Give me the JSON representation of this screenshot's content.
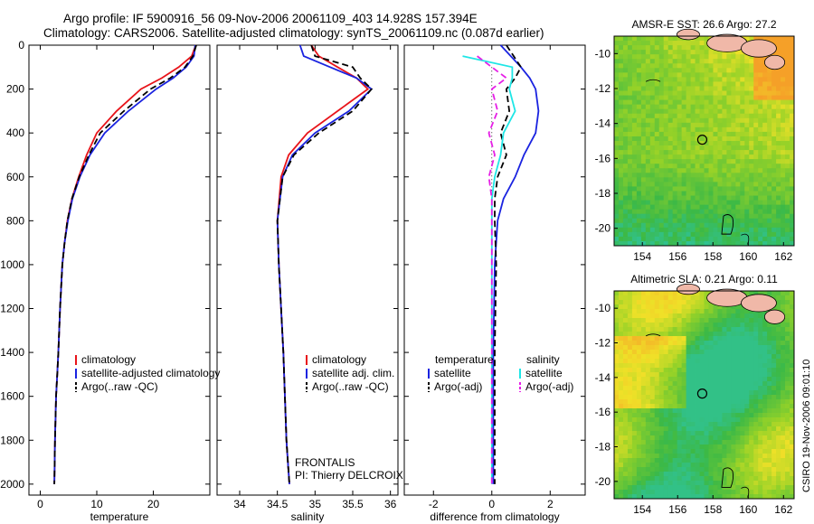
{
  "header": {
    "line1": "Argo profile: IF 5900916_56 09-Nov-2006 20061109_403 14.928S 157.394E",
    "line2": "Climatology: CARS2006. Satellite-adjusted climatology: synTS_20061109.nc (0.087d earlier)"
  },
  "side_label": "CSIRO 19-Nov-2006 09:01:10",
  "colors": {
    "climatology": "#e8141a",
    "satellite": "#1a23e0",
    "argo": "#000000",
    "salinity_satellite": "#1ee6e6",
    "salinity_argo": "#e61ee6"
  },
  "chart_data": [
    {
      "type": "line",
      "title": "",
      "xlabel": "temperature",
      "ylabel": "",
      "xlim": [
        -2,
        30
      ],
      "ylim": [
        2050,
        0
      ],
      "xticks": [
        0,
        10,
        20
      ],
      "yticks": [
        0,
        200,
        400,
        600,
        800,
        1000,
        1200,
        1400,
        1600,
        1800,
        2000
      ],
      "legend": {
        "position": "middle-right",
        "entries": [
          "climatology",
          "satellite-adjusted climatology",
          "Argo(..raw -QC)"
        ]
      },
      "series": [
        {
          "name": "climatology",
          "color": "#e8141a",
          "dash": "solid",
          "x": [
            27.5,
            26.8,
            24.5,
            21.5,
            17.8,
            13.5,
            10.0,
            8.2,
            6.8,
            5.6,
            4.8,
            4.3,
            3.9,
            3.5,
            3.2,
            3.0,
            2.8,
            2.6,
            2.5
          ],
          "y": [
            0,
            50,
            100,
            150,
            200,
            300,
            400,
            500,
            600,
            700,
            800,
            900,
            1000,
            1200,
            1400,
            1500,
            1600,
            1800,
            2000
          ]
        },
        {
          "name": "satellite-adjusted climatology",
          "color": "#1a23e0",
          "dash": "solid",
          "x": [
            27.4,
            27.2,
            25.8,
            23.5,
            20.5,
            15.6,
            11.4,
            8.8,
            7.0,
            5.7,
            4.9,
            4.3,
            3.9,
            3.5,
            3.2,
            3.0,
            2.8,
            2.6,
            2.5
          ],
          "y": [
            0,
            50,
            100,
            150,
            200,
            300,
            400,
            500,
            600,
            700,
            800,
            900,
            1000,
            1200,
            1400,
            1500,
            1600,
            1800,
            2000
          ]
        },
        {
          "name": "Argo(..raw -QC)",
          "color": "#000000",
          "dash": "dashed",
          "x": [
            27.6,
            27.0,
            25.6,
            23.0,
            19.5,
            14.8,
            10.6,
            8.6,
            6.9,
            5.6,
            4.8,
            4.3,
            3.9,
            3.5,
            3.2,
            3.0,
            2.8,
            2.6,
            2.5
          ],
          "y": [
            0,
            50,
            100,
            150,
            200,
            300,
            400,
            500,
            600,
            700,
            800,
            900,
            1000,
            1200,
            1400,
            1500,
            1600,
            1800,
            2000
          ]
        }
      ]
    },
    {
      "type": "line",
      "title": "",
      "xlabel": "salinity",
      "ylabel": "",
      "xlim": [
        33.7,
        36.1
      ],
      "ylim": [
        2050,
        0
      ],
      "xticks": [
        34,
        34.5,
        35,
        35.5,
        36
      ],
      "yticks": [],
      "legend": {
        "position": "bottom-right",
        "entries": [
          "climatology",
          "satellite adj. clim.",
          "Argo(..raw -QC)"
        ]
      },
      "annotations": [
        "FRONTALIS",
        "PI: Thierry DELCROIX"
      ],
      "series": [
        {
          "name": "climatology",
          "color": "#e8141a",
          "dash": "solid",
          "x": [
            34.95,
            35.05,
            35.3,
            35.55,
            35.7,
            35.3,
            34.9,
            34.65,
            34.55,
            34.5,
            34.52,
            34.55,
            34.58,
            34.6,
            34.62,
            34.64,
            34.66
          ],
          "y": [
            0,
            50,
            100,
            150,
            200,
            300,
            400,
            500,
            600,
            800,
            1000,
            1200,
            1400,
            1600,
            1800,
            1900,
            2000
          ]
        },
        {
          "name": "satellite adj. clim.",
          "color": "#1a23e0",
          "dash": "solid",
          "x": [
            34.8,
            34.85,
            35.2,
            35.55,
            35.75,
            35.45,
            35.0,
            34.7,
            34.57,
            34.5,
            34.52,
            34.55,
            34.58,
            34.6,
            34.62,
            34.64,
            34.66
          ],
          "y": [
            0,
            50,
            100,
            150,
            200,
            300,
            400,
            500,
            600,
            800,
            1000,
            1200,
            1400,
            1600,
            1800,
            1900,
            2000
          ]
        },
        {
          "name": "Argo(..raw -QC)",
          "color": "#000000",
          "dash": "dashed",
          "x": [
            34.95,
            35.0,
            35.5,
            35.6,
            35.75,
            35.5,
            35.05,
            34.72,
            34.57,
            34.5,
            34.52,
            34.55,
            34.58,
            34.6,
            34.62,
            34.64,
            34.66
          ],
          "y": [
            0,
            50,
            100,
            150,
            200,
            300,
            400,
            500,
            600,
            800,
            1000,
            1200,
            1400,
            1600,
            1800,
            1900,
            2000
          ]
        }
      ]
    },
    {
      "type": "line",
      "title": "",
      "xlabel": "difference from climatology",
      "ylabel": "",
      "xlim": [
        -3,
        3.2
      ],
      "ylim": [
        2050,
        0
      ],
      "xticks": [
        -2,
        0,
        2
      ],
      "yticks": [],
      "legend": {
        "position": "bottom-middle",
        "groups": [
          {
            "title": "temperature",
            "entries": [
              "satellite",
              "Argo(-adj)"
            ]
          },
          {
            "title": "salinity",
            "entries": [
              "satellite",
              "Argo(-adj)"
            ]
          }
        ]
      },
      "series": [
        {
          "name": "temperature satellite",
          "color": "#1a23e0",
          "dash": "solid",
          "x": [
            0.3,
            1.0,
            1.3,
            1.5,
            1.6,
            1.5,
            1.1,
            0.8,
            0.4,
            0.2,
            0.1,
            0.05,
            0.05,
            0.05
          ],
          "y": [
            0,
            100,
            150,
            200,
            300,
            400,
            500,
            600,
            700,
            800,
            1000,
            1400,
            1800,
            2000
          ]
        },
        {
          "name": "temperature Argo(-adj)",
          "color": "#000000",
          "dash": "dashed",
          "x": [
            0.5,
            1.0,
            0.8,
            0.5,
            0.6,
            0.3,
            0.5,
            0.2,
            0.1,
            0.1,
            0.15,
            0.1,
            0.1
          ],
          "y": [
            0,
            100,
            150,
            200,
            300,
            400,
            500,
            600,
            700,
            800,
            1000,
            1400,
            2000
          ]
        },
        {
          "name": "salinity satellite",
          "color": "#1ee6e6",
          "dash": "solid",
          "x": [
            -1.0,
            0.7,
            0.7,
            0.6,
            0.8,
            0.4,
            0.3,
            0.1,
            0.0,
            0.0,
            0.0,
            0.0
          ],
          "y": [
            50,
            100,
            150,
            200,
            300,
            400,
            500,
            600,
            700,
            1000,
            1500,
            2000
          ]
        },
        {
          "name": "salinity Argo(-adj)",
          "color": "#e61ee6",
          "dash": "dashed",
          "x": [
            -0.5,
            0.0,
            0.5,
            0.0,
            0.2,
            -0.1,
            0.1,
            -0.1,
            0.0,
            0.0,
            0.0,
            0.0
          ],
          "y": [
            50,
            100,
            150,
            200,
            300,
            400,
            500,
            600,
            700,
            1000,
            1500,
            2000
          ]
        }
      ]
    },
    {
      "type": "heatmap",
      "title": "AMSR-E SST: 26.6 Argo: 27.2",
      "xticks": [
        154,
        156,
        158,
        160,
        162
      ],
      "yticks": [
        -10,
        -12,
        -14,
        -16,
        -18,
        -20
      ],
      "xlim": [
        152.4,
        162.6
      ],
      "ylim": [
        -21,
        -9
      ],
      "marker": {
        "lon": 157.394,
        "lat": -14.928
      }
    },
    {
      "type": "heatmap",
      "title": "Altimetric SLA: 0.21 Argo: 0.11",
      "xticks": [
        154,
        156,
        158,
        160,
        162
      ],
      "yticks": [
        -10,
        -12,
        -14,
        -16,
        -18,
        -20
      ],
      "xlim": [
        152.4,
        162.6
      ],
      "ylim": [
        -21,
        -9
      ],
      "marker": {
        "lon": 157.394,
        "lat": -14.928
      }
    }
  ]
}
